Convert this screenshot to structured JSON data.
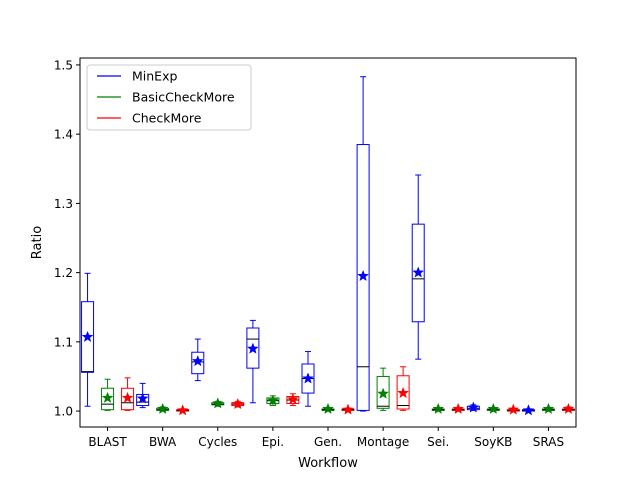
{
  "chart_data": {
    "type": "box",
    "xlabel": "Workflow",
    "ylabel": "Ratio",
    "ylim": [
      0.977,
      1.51
    ],
    "yticks": [
      1.0,
      1.1,
      1.2,
      1.3,
      1.4,
      1.5
    ],
    "ytick_labels": [
      "1.0",
      "1.1",
      "1.2",
      "1.3",
      "1.4",
      "1.5"
    ],
    "categories": [
      "BLAST",
      "BWA",
      "Cycles",
      "Epi.",
      "Gen.",
      "Montage",
      "Sei.",
      "SoyKB",
      "SRAS"
    ],
    "legend_position": "top-left",
    "mean_marker": "star",
    "series": [
      {
        "name": "MinExp",
        "color": "#0000ff",
        "boxes": [
          {
            "whislo": 1.007,
            "q1": 1.056,
            "med": 1.057,
            "q3": 1.158,
            "whishi": 1.199,
            "mean": 1.107
          },
          {
            "whislo": 1.005,
            "q1": 1.008,
            "med": 1.013,
            "q3": 1.024,
            "whishi": 1.04,
            "mean": 1.018
          },
          {
            "whislo": 1.044,
            "q1": 1.054,
            "med": 1.071,
            "q3": 1.085,
            "whishi": 1.104,
            "mean": 1.072
          },
          {
            "whislo": 1.012,
            "q1": 1.062,
            "med": 1.104,
            "q3": 1.12,
            "whishi": 1.131,
            "mean": 1.09
          },
          {
            "whislo": 1.007,
            "q1": 1.026,
            "med": 1.047,
            "q3": 1.068,
            "whishi": 1.086,
            "mean": 1.047
          },
          {
            "whislo": 1.0,
            "q1": 1.001,
            "med": 1.064,
            "q3": 1.385,
            "whishi": 1.483,
            "mean": 1.195
          },
          {
            "whislo": 1.075,
            "q1": 1.129,
            "med": 1.191,
            "q3": 1.27,
            "whishi": 1.341,
            "mean": 1.2
          },
          {
            "whislo": 1.001,
            "q1": 1.002,
            "med": 1.004,
            "q3": 1.007,
            "whishi": 1.009,
            "mean": 1.005
          },
          {
            "whislo": 1.0,
            "q1": 1.0,
            "med": 1.001,
            "q3": 1.002,
            "whishi": 1.003,
            "mean": 1.001
          }
        ]
      },
      {
        "name": "BasicCheckMore",
        "color": "#008000",
        "boxes": [
          {
            "whislo": 1.001,
            "q1": 1.002,
            "med": 1.01,
            "q3": 1.033,
            "whishi": 1.046,
            "mean": 1.019
          },
          {
            "whislo": 1.0,
            "q1": 1.001,
            "med": 1.002,
            "q3": 1.004,
            "whishi": 1.006,
            "mean": 1.003
          },
          {
            "whislo": 1.007,
            "q1": 1.009,
            "med": 1.01,
            "q3": 1.012,
            "whishi": 1.014,
            "mean": 1.011
          },
          {
            "whislo": 1.008,
            "q1": 1.011,
            "med": 1.015,
            "q3": 1.019,
            "whishi": 1.022,
            "mean": 1.015
          },
          {
            "whislo": 1.0,
            "q1": 1.001,
            "med": 1.002,
            "q3": 1.003,
            "whishi": 1.005,
            "mean": 1.003
          },
          {
            "whislo": 1.001,
            "q1": 1.004,
            "med": 1.007,
            "q3": 1.05,
            "whishi": 1.062,
            "mean": 1.025
          },
          {
            "whislo": 1.0,
            "q1": 1.001,
            "med": 1.002,
            "q3": 1.003,
            "whishi": 1.005,
            "mean": 1.003
          },
          {
            "whislo": 1.0,
            "q1": 1.001,
            "med": 1.002,
            "q3": 1.003,
            "whishi": 1.005,
            "mean": 1.003
          },
          {
            "whislo": 1.0,
            "q1": 1.001,
            "med": 1.002,
            "q3": 1.003,
            "whishi": 1.005,
            "mean": 1.003
          }
        ]
      },
      {
        "name": "CheckMore",
        "color": "#ff0000",
        "boxes": [
          {
            "whislo": 1.001,
            "q1": 1.002,
            "med": 1.012,
            "q3": 1.033,
            "whishi": 1.048,
            "mean": 1.019
          },
          {
            "whislo": 1.0,
            "q1": 1.0,
            "med": 1.001,
            "q3": 1.002,
            "whishi": 1.003,
            "mean": 1.001
          },
          {
            "whislo": 1.006,
            "q1": 1.008,
            "med": 1.01,
            "q3": 1.012,
            "whishi": 1.014,
            "mean": 1.01
          },
          {
            "whislo": 1.008,
            "q1": 1.011,
            "med": 1.016,
            "q3": 1.021,
            "whishi": 1.025,
            "mean": 1.017
          },
          {
            "whislo": 1.0,
            "q1": 1.001,
            "med": 1.002,
            "q3": 1.003,
            "whishi": 1.004,
            "mean": 1.002
          },
          {
            "whislo": 1.001,
            "q1": 1.003,
            "med": 1.008,
            "q3": 1.051,
            "whishi": 1.064,
            "mean": 1.026
          },
          {
            "whislo": 1.0,
            "q1": 1.001,
            "med": 1.002,
            "q3": 1.003,
            "whishi": 1.005,
            "mean": 1.003
          },
          {
            "whislo": 1.0,
            "q1": 1.0,
            "med": 1.001,
            "q3": 1.002,
            "whishi": 1.004,
            "mean": 1.002
          },
          {
            "whislo": 1.0,
            "q1": 1.001,
            "med": 1.002,
            "q3": 1.003,
            "whishi": 1.006,
            "mean": 1.003
          }
        ]
      }
    ]
  }
}
